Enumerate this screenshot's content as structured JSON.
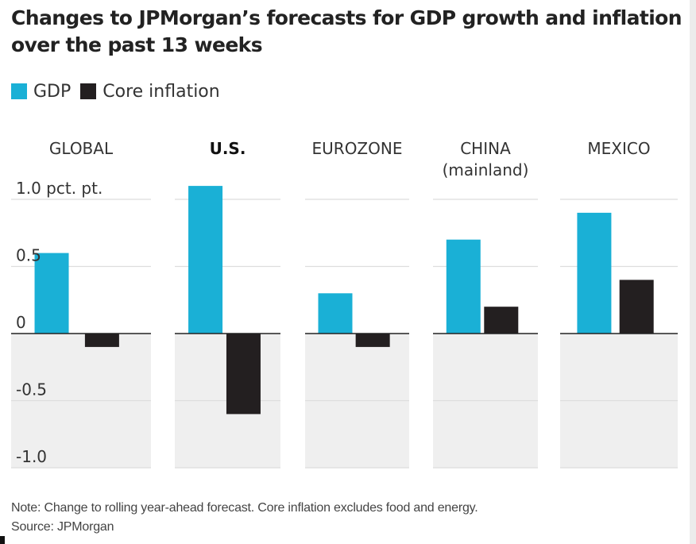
{
  "title": "Changes to JPMorgan’s forecasts for GDP growth and inflation over the past 13 weeks",
  "legend": [
    {
      "label": "GDP",
      "color": "#1ab0d6"
    },
    {
      "label": "Core inflation",
      "color": "#231f20"
    }
  ],
  "colors": {
    "negative_band": "#efefef",
    "grid": "#dddddd",
    "zero_line": "#222222"
  },
  "chart_data": {
    "type": "bar",
    "ylim": [
      -1.0,
      1.0
    ],
    "y_ticks": [
      {
        "value": 1.0,
        "label": "1.0 pct. pt."
      },
      {
        "value": 0.5,
        "label": "0.5"
      },
      {
        "value": 0,
        "label": "0"
      },
      {
        "value": -0.5,
        "label": "-0.5"
      },
      {
        "value": -1.0,
        "label": "-1.0"
      }
    ],
    "categories": [
      {
        "lines": [
          "GLOBAL"
        ],
        "bold": false
      },
      {
        "lines": [
          "U.S."
        ],
        "bold": true
      },
      {
        "lines": [
          "EUROZONE"
        ],
        "bold": false
      },
      {
        "lines": [
          "CHINA",
          "(mainland)"
        ],
        "bold": false
      },
      {
        "lines": [
          "MEXICO"
        ],
        "bold": false
      }
    ],
    "series": [
      {
        "name": "GDP",
        "values": [
          0.6,
          1.1,
          0.3,
          0.7,
          0.9
        ]
      },
      {
        "name": "Core inflation",
        "values": [
          -0.1,
          -0.6,
          -0.1,
          0.2,
          0.4
        ]
      }
    ]
  },
  "footer": {
    "note": "Note: Change to rolling year-ahead forecast. Core inflation excludes food and energy.",
    "source": "Source: JPMorgan"
  }
}
